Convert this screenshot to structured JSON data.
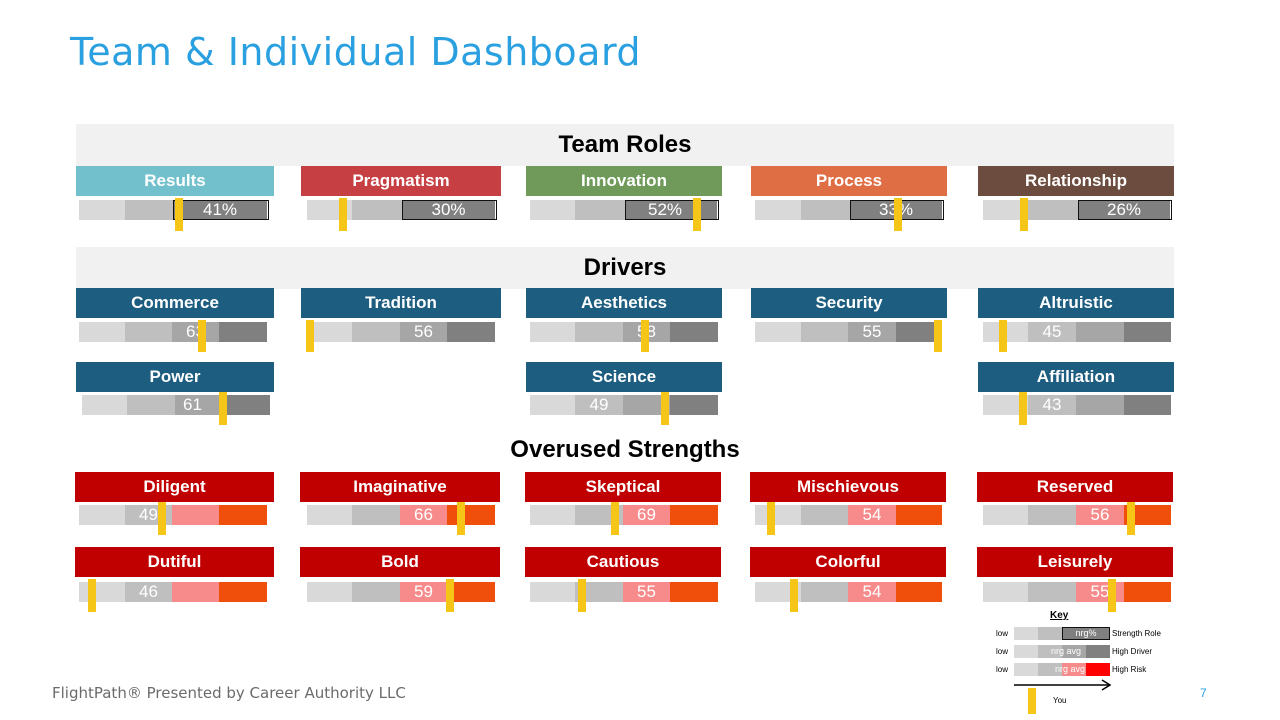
{
  "page": {
    "title": "Team & Individual Dashboard",
    "footer": "FlightPath® Presented by Career Authority LLC",
    "page_number": "7"
  },
  "sections": {
    "team_roles": "Team Roles",
    "drivers": "Drivers",
    "overused": "Overused Strengths"
  },
  "colors": {
    "light": "#D9D9D9",
    "mid": "#BFBFBF",
    "dark1": "#A6A6A6",
    "dark2": "#808080",
    "marker": "#F5C518",
    "risk_pink": "#F78A8A",
    "risk_orange": "#F04E0B",
    "driver_header": "#1C5D80",
    "risk_header": "#C00000"
  },
  "team_roles": [
    {
      "label": "Results",
      "value": "41%",
      "percent": 41,
      "color": "#72C0CC"
    },
    {
      "label": "Pragmatism",
      "value": "30%",
      "percent": 30,
      "color": "#C64043"
    },
    {
      "label": "Innovation",
      "value": "52%",
      "percent": 52,
      "color": "#6F9A5A"
    },
    {
      "label": "Process",
      "value": "33%",
      "percent": 33,
      "color": "#E06E45"
    },
    {
      "label": "Relationship",
      "value": "26%",
      "percent": 26,
      "color": "#6B4C3E"
    }
  ],
  "drivers": [
    {
      "label": "Commerce",
      "value": "63"
    },
    {
      "label": "Tradition",
      "value": "56"
    },
    {
      "label": "Aesthetics",
      "value": "58"
    },
    {
      "label": "Security",
      "value": "55"
    },
    {
      "label": "Altruistic",
      "value": "45"
    },
    {
      "label": "Power",
      "value": "61"
    },
    {
      "label": "Science",
      "value": "49"
    },
    {
      "label": "Affiliation",
      "value": "43"
    }
  ],
  "overused": [
    {
      "label": "Diligent",
      "value": "49"
    },
    {
      "label": "Imaginative",
      "value": "66"
    },
    {
      "label": "Skeptical",
      "value": "69"
    },
    {
      "label": "Mischievous",
      "value": "54"
    },
    {
      "label": "Reserved",
      "value": "56"
    },
    {
      "label": "Dutiful",
      "value": "46"
    },
    {
      "label": "Bold",
      "value": "59"
    },
    {
      "label": "Cautious",
      "value": "55"
    },
    {
      "label": "Colorful",
      "value": "54"
    },
    {
      "label": "Leisurely",
      "value": "55"
    }
  ],
  "key": {
    "title": "Key",
    "rows": [
      {
        "low": "low",
        "mid": "nrg%",
        "label": "Strength Role"
      },
      {
        "low": "low",
        "mid": "nrg avg",
        "label": "High Driver"
      },
      {
        "low": "low",
        "mid": "nrg avg",
        "label": "High Risk"
      }
    ],
    "you": "You"
  }
}
